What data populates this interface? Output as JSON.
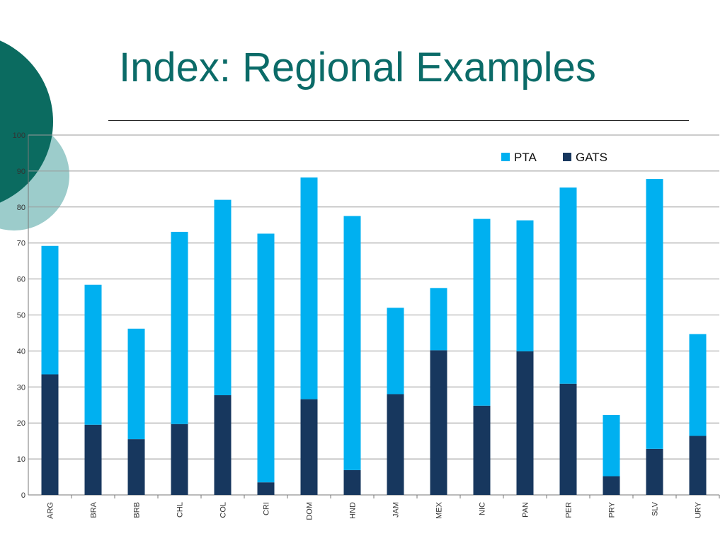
{
  "slide": {
    "title": "Index: Regional Examples"
  },
  "colors": {
    "title": "#0b6b68",
    "circle_dark": "#0b6b60",
    "circle_light": "#9ccccb",
    "series_pta": "#00b0f0",
    "series_gats": "#17375e"
  },
  "chart_data": {
    "type": "bar",
    "stacked": true,
    "title": "",
    "xlabel": "",
    "ylabel": "",
    "ylim": [
      0,
      100
    ],
    "yticks": [
      0,
      10,
      20,
      30,
      40,
      50,
      60,
      70,
      80,
      90,
      100
    ],
    "grid": true,
    "legend": "top-right",
    "categories": [
      "ARG",
      "BRA",
      "BRB",
      "CHL",
      "COL",
      "CRI",
      "DOM",
      "HND",
      "JAM",
      "MEX",
      "NIC",
      "PAN",
      "PER",
      "PRY",
      "SLV",
      "URY"
    ],
    "series": [
      {
        "name": "GATS",
        "color": "#17375e",
        "values": [
          33.5,
          19.5,
          15.5,
          19.7,
          27.7,
          3.5,
          26.6,
          6.9,
          28.0,
          40.2,
          24.8,
          39.9,
          30.9,
          5.2,
          12.8,
          16.4
        ]
      },
      {
        "name": "PTA",
        "color": "#00b0f0",
        "values": [
          35.7,
          38.9,
          30.7,
          53.4,
          54.3,
          69.1,
          61.6,
          70.6,
          24.0,
          17.3,
          51.9,
          36.4,
          54.5,
          17.0,
          75.0,
          28.3
        ]
      }
    ],
    "legend_order": [
      "PTA",
      "GATS"
    ]
  }
}
